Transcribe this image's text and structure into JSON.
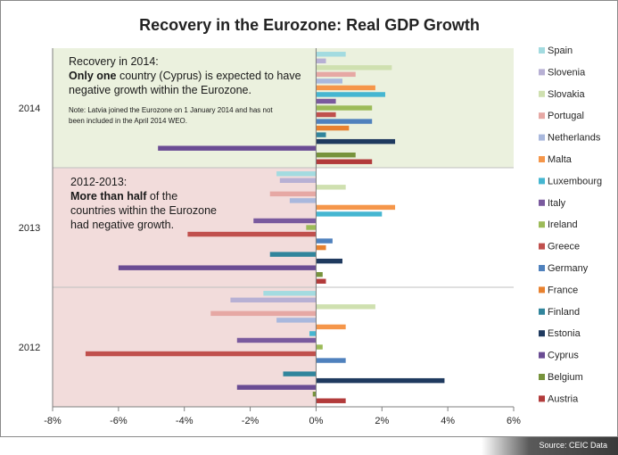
{
  "chart_data": {
    "type": "bar",
    "orientation": "horizontal",
    "title": "Recovery in the Eurozone: Real GDP Growth",
    "xlim": [
      -8,
      6
    ],
    "xticks": [
      -8,
      -6,
      -4,
      -2,
      0,
      2,
      4,
      6
    ],
    "tick_labels": [
      "-8%",
      "-6%",
      "-4%",
      "-2%",
      "0%",
      "2%",
      "4%",
      "6%"
    ],
    "categories": [
      "2014",
      "2013",
      "2012"
    ],
    "legend_position": "right",
    "series": [
      {
        "name": "Spain",
        "color": "#a3dbe0",
        "values": [
          0.9,
          -1.2,
          -1.6
        ]
      },
      {
        "name": "Slovenia",
        "color": "#b7b0d4",
        "values": [
          0.3,
          -1.1,
          -2.6
        ]
      },
      {
        "name": "Slovakia",
        "color": "#cfe0b0",
        "values": [
          2.3,
          0.9,
          1.8
        ]
      },
      {
        "name": "Portugal",
        "color": "#e6a8a4",
        "values": [
          1.2,
          -1.4,
          -3.2
        ]
      },
      {
        "name": "Netherlands",
        "color": "#a9b8dd",
        "values": [
          0.8,
          -0.8,
          -1.2
        ]
      },
      {
        "name": "Malta",
        "color": "#f5964a",
        "values": [
          1.8,
          2.4,
          0.9
        ]
      },
      {
        "name": "Luxembourg",
        "color": "#45b6d1",
        "values": [
          2.1,
          2.0,
          -0.2
        ]
      },
      {
        "name": "Italy",
        "color": "#7a5a9e",
        "values": [
          0.6,
          -1.9,
          -2.4
        ]
      },
      {
        "name": "Ireland",
        "color": "#9cbb58",
        "values": [
          1.7,
          -0.3,
          0.2
        ]
      },
      {
        "name": "Greece",
        "color": "#c0504d",
        "values": [
          0.6,
          -3.9,
          -7.0
        ]
      },
      {
        "name": "Germany",
        "color": "#4f81bd",
        "values": [
          1.7,
          0.5,
          0.9
        ]
      },
      {
        "name": "France",
        "color": "#e8812f",
        "values": [
          1.0,
          0.3,
          0.0
        ]
      },
      {
        "name": "Finland",
        "color": "#31859c",
        "values": [
          0.3,
          -1.4,
          -1.0
        ]
      },
      {
        "name": "Estonia",
        "color": "#1f3a5f",
        "values": [
          2.4,
          0.8,
          3.9
        ]
      },
      {
        "name": "Cyprus",
        "color": "#6a4c93",
        "values": [
          -4.8,
          -6.0,
          -2.4
        ]
      },
      {
        "name": "Belgium",
        "color": "#77933c",
        "values": [
          1.2,
          0.2,
          -0.1
        ]
      },
      {
        "name": "Austria",
        "color": "#b23b3b",
        "values": [
          1.7,
          0.3,
          0.9
        ]
      }
    ],
    "annotations": {
      "a2014": {
        "line1": "Recovery in 2014:",
        "line2_bold": "Only one",
        "line2_rest": " country (Cyprus) is expected to have",
        "line3": "negative growth within the Eurozone.",
        "note1": "Note: Latvia joined the Eurozone on 1 January 2014 and has not",
        "note2": "been included in the April 2014 WEO."
      },
      "a2013": {
        "line1": "2012-2013:",
        "line2_bold": "More than half",
        "line2_rest": " of the",
        "line3": "countries within the Eurozone",
        "line4": "had negative growth."
      }
    },
    "source": "Source: CEIC Data"
  },
  "colors": {
    "band_2014": "#ebf1de",
    "band_2012_2013": "#f2dcdb"
  }
}
